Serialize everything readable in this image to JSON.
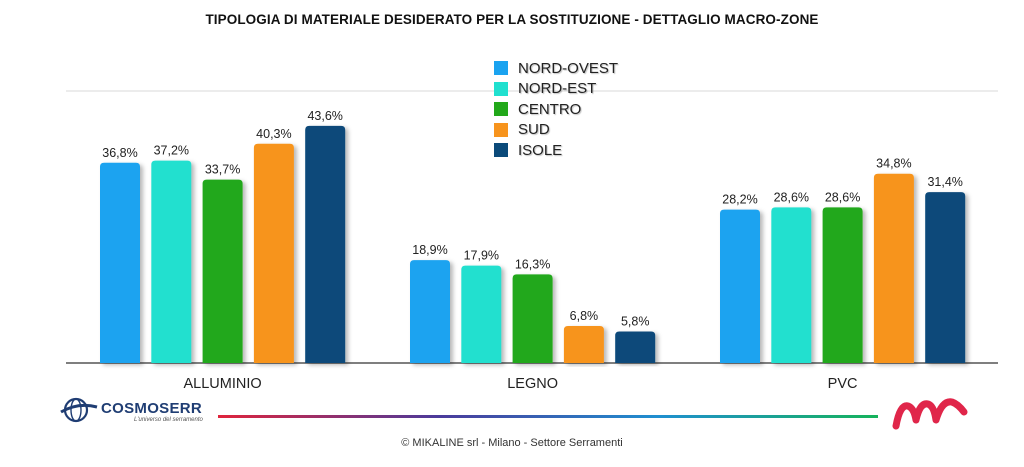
{
  "colors": {
    "nord_ovest": "#1aa3f0",
    "nord_est": "#20e0cf",
    "centro": "#22a81a",
    "sud": "#f7941d",
    "isole": "#0b4a7a"
  },
  "chart_data": {
    "type": "bar",
    "title": "TIPOLOGIA DI MATERIALE DESIDERATO PER LA SOSTITUZIONE - DETTAGLIO MACRO-ZONE",
    "categories": [
      "ALLUMINIO",
      "LEGNO",
      "PVC"
    ],
    "series": [
      {
        "name": "NORD-OVEST",
        "values": [
          36.8,
          18.9,
          28.2
        ],
        "labels": [
          "36,8%",
          "18,9%",
          "28,2%"
        ]
      },
      {
        "name": "NORD-EST",
        "values": [
          37.2,
          17.9,
          28.6
        ],
        "labels": [
          "37,2%",
          "17,9%",
          "28,6%"
        ]
      },
      {
        "name": "CENTRO",
        "values": [
          33.7,
          16.3,
          28.6
        ],
        "labels": [
          "33,7%",
          "16,3%",
          "28,6%"
        ]
      },
      {
        "name": "SUD",
        "values": [
          40.3,
          6.8,
          34.8
        ],
        "labels": [
          "40,3%",
          "6,8%",
          "34,8%"
        ]
      },
      {
        "name": "ISOLE",
        "values": [
          43.6,
          5.8,
          31.4
        ],
        "labels": [
          "43,6%",
          "5,8%",
          "31,4%"
        ]
      }
    ],
    "xlabel": "",
    "ylabel": "",
    "ylim": [
      0,
      50
    ],
    "grid": false,
    "legend": "top-center"
  },
  "logos": {
    "left_brand": "COSMOSERR",
    "left_tagline": "L'universo del serramento",
    "right_logo": "mikaline-m-icon"
  },
  "footer": {
    "text": "© MIKALINE srl -  Milano - Settore Serramenti"
  }
}
